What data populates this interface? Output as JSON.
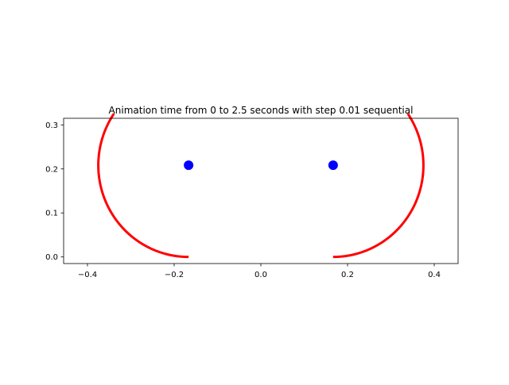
{
  "chart_data": {
    "type": "line",
    "title": "Animation time from 0 to 2.5 seconds with step 0.01 sequential",
    "xlabel": "",
    "ylabel": "",
    "xlim": [
      -0.455,
      0.455
    ],
    "ylim": [
      -0.015,
      0.315
    ],
    "xticks": [
      -0.4,
      -0.2,
      0.0,
      0.2,
      0.4
    ],
    "xtick_labels": [
      "−0.4",
      "−0.2",
      "0.0",
      "0.2",
      "0.4"
    ],
    "yticks": [
      0.0,
      0.1,
      0.2,
      0.3
    ],
    "ytick_labels": [
      "0.0",
      "0.1",
      "0.2",
      "0.3"
    ],
    "grid": false,
    "aspect": "equal",
    "colors": {
      "arc": "#ff0000",
      "point": "#0000ff"
    },
    "arcs": [
      {
        "center": [
          -0.1667,
          0.2083
        ],
        "radius": 0.2083,
        "start_deg": 270,
        "end_deg": 145.8
      },
      {
        "center": [
          0.1667,
          0.2083
        ],
        "radius": 0.2083,
        "start_deg": 270,
        "end_deg": 394.2
      }
    ],
    "points": [
      {
        "x": -0.1667,
        "y": 0.2083
      },
      {
        "x": 0.1667,
        "y": 0.2083
      }
    ]
  }
}
